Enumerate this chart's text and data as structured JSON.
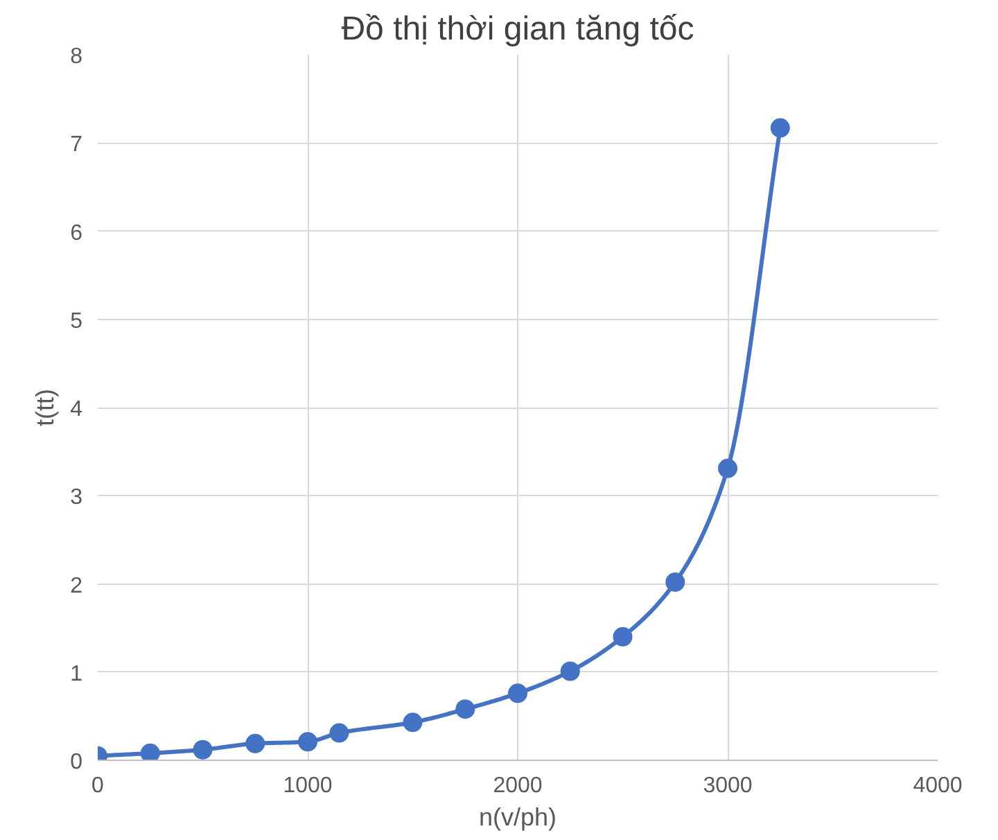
{
  "chart_data": {
    "type": "line",
    "title": "Đồ thị thời gian tăng tốc",
    "xlabel": "n(v/ph)",
    "ylabel": "t(tt)",
    "x": [
      0,
      250,
      500,
      750,
      1000,
      1150,
      1500,
      1750,
      2000,
      2250,
      2500,
      2750,
      3000,
      3250
    ],
    "series": [
      {
        "color": "#4472c4",
        "values": [
          0.05,
          0.08,
          0.12,
          0.19,
          0.21,
          0.31,
          0.43,
          0.58,
          0.76,
          1.01,
          1.4,
          2.02,
          3.31,
          7.17
        ]
      }
    ],
    "xlim": [
      0,
      4000
    ],
    "xticks": [
      0,
      1000,
      2000,
      3000,
      4000
    ],
    "ylim": [
      0,
      8
    ],
    "yticks": [
      0,
      1,
      2,
      3,
      4,
      5,
      6,
      7,
      8
    ],
    "grid": true,
    "marker": "circle",
    "line_style": "solid"
  }
}
